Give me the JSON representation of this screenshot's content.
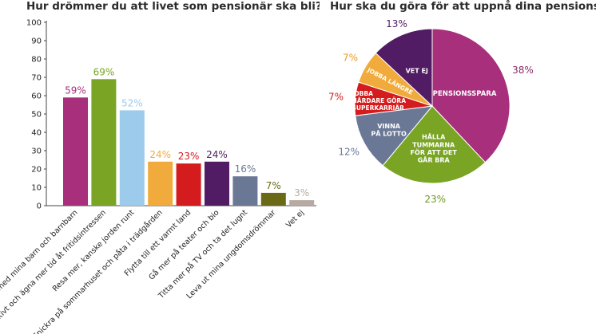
{
  "chart_data": [
    {
      "type": "bar",
      "title": "Hur drömmer du att livet som pensionär ska bli?",
      "categories": [
        "Umgås med mina barn och barnbarn",
        "Leva aktivt och ägna mer tid åt fritidsintressen",
        "Resa mer, kanske jorden runt",
        "Snickra på sommarhuset och påta i trädgården",
        "Flytta till ett varmt land",
        "Gå mer på teater och bio",
        "Titta mer på TV och ta det lugnt",
        "Leva ut mina ungdomsdrömmar",
        "Vet ej"
      ],
      "values": [
        59,
        69,
        52,
        24,
        23,
        24,
        16,
        7,
        3
      ],
      "value_labels": [
        "59%",
        "69%",
        "52%",
        "24%",
        "23%",
        "24%",
        "16%",
        "7%",
        "3%"
      ],
      "colors": [
        "#a72f7b",
        "#7aa524",
        "#9ccbec",
        "#f1ab3c",
        "#d41b1d",
        "#521c64",
        "#6a7896",
        "#6a6a16",
        "#b8aaa2"
      ],
      "yticks": [
        "0",
        "10",
        "20",
        "30",
        "40",
        "50",
        "60",
        "70",
        "80",
        "90",
        "100"
      ],
      "ylim": [
        0,
        100
      ],
      "xlabel": "",
      "ylabel": "",
      "grid": false
    },
    {
      "type": "pie",
      "title": "Hur ska du göra för att uppnå dina pensionsdrömmar?",
      "slices": [
        {
          "name": "PENSIONSSPARA",
          "value": 38,
          "value_label": "38%",
          "color": "#a72f7b",
          "name_color": "#ffffff",
          "label_color": "#8a2a6c"
        },
        {
          "name": "HÅLLA TUMMARNA FÖR ATT DET GÅR BRA",
          "value": 23,
          "value_label": "23%",
          "color": "#7aa524",
          "name_color": "#ffffff",
          "label_color": "#6b9a1e"
        },
        {
          "name": "VINNA PÅ LOTTO",
          "value": 12,
          "value_label": "12%",
          "color": "#6a7896",
          "name_color": "#ffffff",
          "label_color": "#6a7896"
        },
        {
          "name": "JOBBA HÅRDARE GÖRA SUPERKARRIÄR",
          "value": 7,
          "value_label": "7%",
          "color": "#d41b1d",
          "name_color": "#ffffff",
          "label_color": "#d41b1d"
        },
        {
          "name": "JOBBA LÄNGRE",
          "value": 7,
          "value_label": "7%",
          "color": "#f1ab3c",
          "name_color": "#ffffff",
          "label_color": "#e89a2a"
        },
        {
          "name": "VET EJ",
          "value": 13,
          "value_label": "13%",
          "color": "#521c64",
          "name_color": "#ffffff",
          "label_color": "#521c64"
        }
      ]
    }
  ]
}
